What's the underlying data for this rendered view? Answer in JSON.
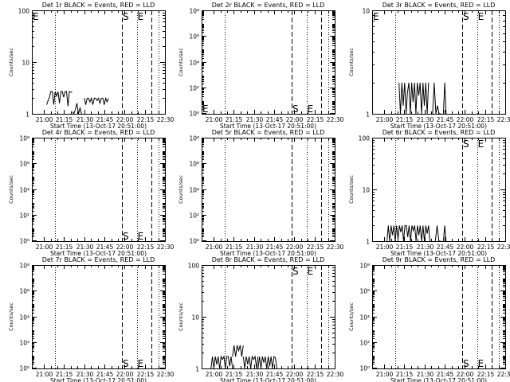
{
  "figure": {
    "x_axis_ticks": [
      "21:00",
      "21:15",
      "21:30",
      "21:45",
      "22:00",
      "22:15",
      "22:30"
    ],
    "x_label": "Start Time (13-Oct-17 20:51:00)",
    "y_label": "Counts/sec",
    "log_scale_y": true
  },
  "chart_data": [
    {
      "type": "line",
      "title": "Det 1r BLACK = Events, RED = LLD",
      "ylim": [
        1,
        100
      ],
      "y_ticks": [
        {
          "v": 1,
          "label": "1"
        },
        {
          "v": 10,
          "label": "10"
        },
        {
          "v": 100,
          "label": "100"
        }
      ],
      "vlines_dotted": [
        "21:08",
        "22:09",
        "22:25"
      ],
      "vlines_dashed": [
        "21:58",
        "22:20"
      ],
      "markers": [
        {
          "t": "20:51",
          "label": "E",
          "pos": "top"
        },
        {
          "t": "21:58",
          "label": "S",
          "pos": "top"
        },
        {
          "t": "22:09",
          "label": "E",
          "pos": "top"
        }
      ],
      "series": [
        {
          "color": "#000000",
          "segments": [
            {
              "start": "21:02",
              "end": "21:21",
              "values": [
                1.5,
                1.8,
                2.1,
                2.7,
                2.7,
                1.5,
                2.7,
                2.2,
                2.7,
                1.6,
                2.7,
                2.7,
                2.1,
                2.7,
                2.7,
                1.4,
                2.7,
                2.6,
                2.7
              ]
            },
            {
              "start": "21:21",
              "end": "21:28",
              "values": [
                1.1,
                1.0,
                1.2,
                1.6,
                1.0,
                1.3,
                1.0
              ]
            },
            {
              "start": "21:30",
              "end": "21:48",
              "values": [
                2.0,
                1.5,
                2.0,
                2.0,
                1.7,
                2.0,
                1.5,
                2.0,
                2.0,
                1.8,
                2.0,
                1.6,
                2.0,
                2.0,
                1.5,
                2.0,
                1.7,
                2.0
              ]
            }
          ]
        }
      ]
    },
    {
      "type": "line",
      "title": "Det 2r BLACK = Events, RED = LLD",
      "ylim": [
        0.9,
        100000000
      ],
      "y_ticks": [
        {
          "v": 1,
          "label": "10⁰"
        },
        {
          "v": 100,
          "label": "10²"
        },
        {
          "v": 10000,
          "label": "10⁴"
        },
        {
          "v": 1000000,
          "label": "10⁶"
        },
        {
          "v": 100000000,
          "label": "10⁸"
        }
      ],
      "vlines_dotted": [
        "21:08",
        "22:09",
        "22:25"
      ],
      "vlines_dashed": [
        "21:58",
        "22:20"
      ],
      "markers": [
        {
          "t": "20:51",
          "label": "E",
          "pos": "bottom"
        },
        {
          "t": "21:58",
          "label": "S",
          "pos": "bottom"
        },
        {
          "t": "22:09",
          "label": "E",
          "pos": "bottom"
        }
      ],
      "series": []
    },
    {
      "type": "line",
      "title": "Det 3r BLACK = Events, RED = LLD",
      "ylim": [
        1,
        10
      ],
      "y_ticks": [
        {
          "v": 1,
          "label": "1"
        },
        {
          "v": 10,
          "label": "10"
        }
      ],
      "vlines_dotted": [
        "21:08",
        "22:09",
        "22:25"
      ],
      "vlines_dashed": [
        "21:58",
        "22:20"
      ],
      "markers": [
        {
          "t": "20:51",
          "label": "E",
          "pos": "top"
        },
        {
          "t": "21:58",
          "label": "S",
          "pos": "top"
        },
        {
          "t": "22:09",
          "label": "E",
          "pos": "top"
        }
      ],
      "series": [
        {
          "color": "#000000",
          "segments": [
            {
              "start": "21:11",
              "end": "21:33",
              "values": [
                2.0,
                1.0,
                2.0,
                1.2,
                2.0,
                1.0,
                1.6,
                2.0,
                1.0,
                2.0,
                1.3,
                2.0,
                1.0,
                2.0,
                1.5,
                2.0,
                1.0,
                2.0,
                1.2,
                2.0,
                1.0,
                2.0
              ]
            },
            {
              "start": "21:36",
              "end": "21:42",
              "values": [
                1.0,
                2.0,
                1.0,
                1.2,
                1.0,
                1.0
              ]
            },
            {
              "start": "21:44",
              "end": "21:46",
              "values": [
                1.0,
                2.0,
                1.0
              ]
            }
          ]
        }
      ]
    },
    {
      "type": "line",
      "title": "Det 4r BLACK = Events, RED = LLD",
      "ylim": [
        0.9,
        100000000
      ],
      "y_ticks": [
        {
          "v": 1,
          "label": "10⁰"
        },
        {
          "v": 100,
          "label": "10²"
        },
        {
          "v": 10000,
          "label": "10⁴"
        },
        {
          "v": 1000000,
          "label": "10⁶"
        },
        {
          "v": 100000000,
          "label": "10⁸"
        }
      ],
      "vlines_dotted": [
        "21:08",
        "22:09",
        "22:25"
      ],
      "vlines_dashed": [
        "21:58",
        "22:20"
      ],
      "markers": [
        {
          "t": "21:58",
          "label": "S",
          "pos": "bottom"
        },
        {
          "t": "22:09",
          "label": "E",
          "pos": "bottom"
        }
      ],
      "series": []
    },
    {
      "type": "line",
      "title": "Det 5r BLACK = Events, RED = LLD",
      "ylim": [
        0.9,
        100000000
      ],
      "y_ticks": [
        {
          "v": 1,
          "label": "10⁰"
        },
        {
          "v": 100,
          "label": "10²"
        },
        {
          "v": 10000,
          "label": "10⁴"
        },
        {
          "v": 1000000,
          "label": "10⁶"
        },
        {
          "v": 100000000,
          "label": "10⁸"
        }
      ],
      "vlines_dotted": [
        "21:08",
        "22:09",
        "22:25"
      ],
      "vlines_dashed": [
        "21:58",
        "22:20"
      ],
      "markers": [],
      "series": []
    },
    {
      "type": "line",
      "title": "Det 6r BLACK = Events, RED = LLD",
      "ylim": [
        1,
        100
      ],
      "y_ticks": [
        {
          "v": 1,
          "label": "1"
        },
        {
          "v": 10,
          "label": "10"
        },
        {
          "v": 100,
          "label": "100"
        }
      ],
      "vlines_dotted": [
        "21:08",
        "22:09",
        "22:25"
      ],
      "vlines_dashed": [
        "21:58",
        "22:20"
      ],
      "markers": [
        {
          "t": "21:58",
          "label": "S",
          "pos": "top"
        },
        {
          "t": "22:09",
          "label": "E",
          "pos": "top"
        }
      ],
      "series": [
        {
          "color": "#000000",
          "segments": [
            {
              "start": "21:02",
              "end": "21:34",
              "values": [
                1.0,
                2.0,
                1.0,
                2.0,
                1.3,
                2.0,
                1.0,
                2.0,
                1.1,
                2.0,
                1.5,
                2.0,
                1.0,
                2.0,
                2.0,
                1.2,
                2.0,
                1.0,
                2.0,
                1.6,
                2.0,
                1.0,
                2.0,
                1.3,
                2.0,
                1.0,
                2.0,
                1.0,
                2.0,
                1.4,
                2.0,
                1.0
              ]
            },
            {
              "start": "21:38",
              "end": "21:42",
              "values": [
                1.0,
                2.0,
                1.0,
                1.0
              ]
            },
            {
              "start": "21:44",
              "end": "21:46",
              "values": [
                1.0,
                2.0,
                1.0
              ]
            }
          ]
        }
      ]
    },
    {
      "type": "line",
      "title": "Det 7r BLACK = Events, RED = LLD",
      "ylim": [
        0.9,
        100000000
      ],
      "y_ticks": [
        {
          "v": 1,
          "label": "10⁰"
        },
        {
          "v": 100,
          "label": "10²"
        },
        {
          "v": 10000,
          "label": "10⁴"
        },
        {
          "v": 1000000,
          "label": "10⁶"
        },
        {
          "v": 100000000,
          "label": "10⁸"
        }
      ],
      "vlines_dotted": [
        "21:08",
        "22:09",
        "22:25"
      ],
      "vlines_dashed": [
        "21:58",
        "22:20"
      ],
      "markers": [
        {
          "t": "21:58",
          "label": "S",
          "pos": "bottom"
        },
        {
          "t": "22:09",
          "label": "E",
          "pos": "bottom"
        }
      ],
      "series": []
    },
    {
      "type": "line",
      "title": "Det 8r BLACK = Events, RED = LLD",
      "ylim": [
        1,
        100
      ],
      "y_ticks": [
        {
          "v": 1,
          "label": "1"
        },
        {
          "v": 10,
          "label": "10"
        },
        {
          "v": 100,
          "label": "100"
        }
      ],
      "vlines_dotted": [
        "21:08",
        "22:09",
        "22:25"
      ],
      "vlines_dashed": [
        "21:58",
        "22:20"
      ],
      "markers": [
        {
          "t": "21:58",
          "label": "S",
          "pos": "top"
        },
        {
          "t": "22:09",
          "label": "E",
          "pos": "top"
        }
      ],
      "series": [
        {
          "color": "#000000",
          "segments": [
            {
              "start": "20:58",
              "end": "21:14",
              "values": [
                1.0,
                1.7,
                1.0,
                1.7,
                1.2,
                1.7,
                1.0,
                1.7,
                1.5,
                1.7,
                1.0,
                1.7,
                1.7,
                1.1,
                1.7,
                1.0
              ]
            },
            {
              "start": "21:14",
              "end": "21:22",
              "values": [
                1.7,
                2.8,
                1.7,
                2.8,
                2.2,
                2.8,
                1.7,
                2.8
              ]
            },
            {
              "start": "21:22",
              "end": "21:33",
              "values": [
                1.7,
                1.0,
                1.7,
                1.2,
                1.7,
                1.0,
                1.7,
                1.5,
                1.7,
                1.0,
                1.7
              ]
            },
            {
              "start": "21:33",
              "end": "21:47",
              "values": [
                1.0,
                1.7,
                1.0,
                1.7,
                1.3,
                1.7,
                1.0,
                1.7,
                1.1,
                1.7,
                1.0,
                1.7,
                1.6,
                1.0
              ]
            }
          ]
        }
      ]
    },
    {
      "type": "line",
      "title": "Det 9r BLACK = Events, RED = LLD",
      "ylim": [
        0.9,
        100000000
      ],
      "y_ticks": [
        {
          "v": 1,
          "label": "10⁰"
        },
        {
          "v": 100,
          "label": "10²"
        },
        {
          "v": 10000,
          "label": "10⁴"
        },
        {
          "v": 1000000,
          "label": "10⁶"
        },
        {
          "v": 100000000,
          "label": "10⁸"
        }
      ],
      "vlines_dotted": [
        "21:08",
        "22:09",
        "22:25"
      ],
      "vlines_dashed": [
        "21:58",
        "22:20"
      ],
      "markers": [
        {
          "t": "21:58",
          "label": "S",
          "pos": "bottom"
        },
        {
          "t": "22:09",
          "label": "E",
          "pos": "bottom"
        }
      ],
      "series": []
    }
  ]
}
